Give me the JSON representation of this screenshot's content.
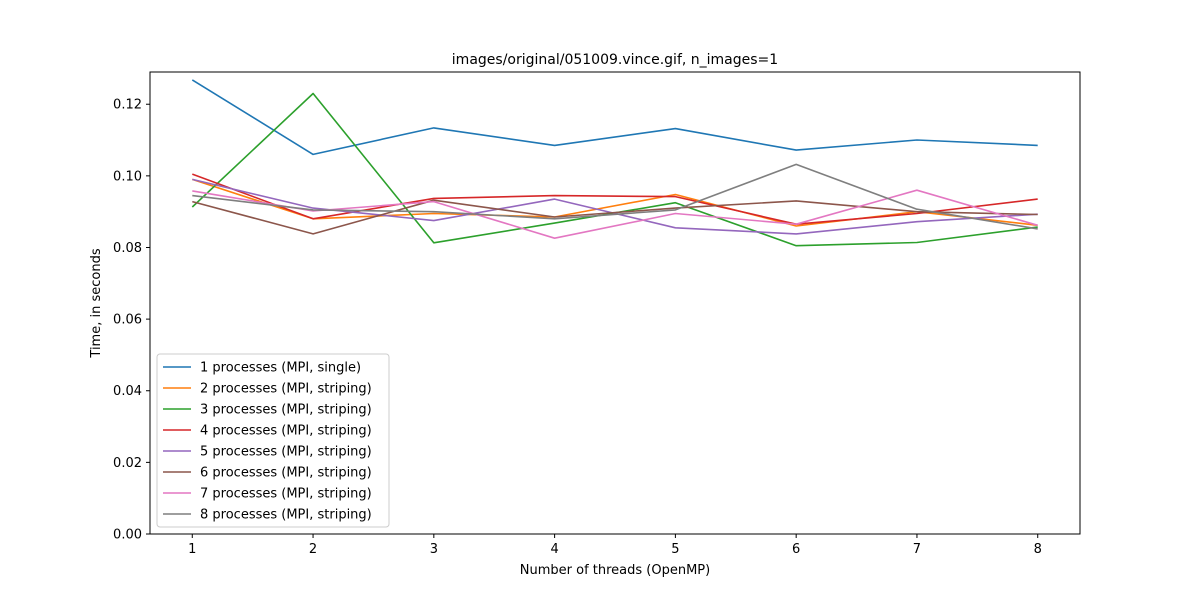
{
  "chart_data": {
    "type": "line",
    "title": "images/original/051009.vince.gif, n_images=1",
    "xlabel": "Number of threads (OpenMP)",
    "ylabel": "Time, in seconds",
    "x": [
      1,
      2,
      3,
      4,
      5,
      6,
      7,
      8
    ],
    "xlim": [
      0.65,
      8.35
    ],
    "ylim": [
      0,
      0.129
    ],
    "x_ticks": [
      1,
      2,
      3,
      4,
      5,
      6,
      7,
      8
    ],
    "x_tick_labels": [
      "1",
      "2",
      "3",
      "4",
      "5",
      "6",
      "7",
      "8"
    ],
    "y_ticks": [
      0,
      0.02,
      0.04,
      0.06,
      0.08,
      0.1,
      0.12
    ],
    "y_tick_labels": [
      "0.00",
      "0.02",
      "0.04",
      "0.06",
      "0.08",
      "0.10",
      "0.12"
    ],
    "grid": false,
    "legend_position": "lower-left",
    "series": [
      {
        "name": "1 processes (MPI, single)",
        "color": "#1f77b4",
        "values": [
          0.1268,
          0.106,
          0.1134,
          0.1085,
          0.1132,
          0.1072,
          0.11,
          0.1085
        ]
      },
      {
        "name": "2 processes (MPI, striping)",
        "color": "#ff7f0e",
        "values": [
          0.099,
          0.088,
          0.0895,
          0.0885,
          0.0948,
          0.086,
          0.09,
          0.0862
        ]
      },
      {
        "name": "3 processes (MPI, striping)",
        "color": "#2ca02c",
        "values": [
          0.0913,
          0.123,
          0.0813,
          0.0868,
          0.0925,
          0.0805,
          0.0814,
          0.0857
        ]
      },
      {
        "name": "4 processes (MPI, striping)",
        "color": "#d62728",
        "values": [
          0.1005,
          0.088,
          0.0937,
          0.0945,
          0.0942,
          0.0865,
          0.0895,
          0.0935
        ]
      },
      {
        "name": "5 processes (MPI, striping)",
        "color": "#9467bd",
        "values": [
          0.099,
          0.091,
          0.0875,
          0.0935,
          0.0855,
          0.0838,
          0.0872,
          0.0893
        ]
      },
      {
        "name": "6 processes (MPI, striping)",
        "color": "#8c564b",
        "values": [
          0.0928,
          0.0838,
          0.0932,
          0.0885,
          0.091,
          0.093,
          0.09,
          0.0892
        ]
      },
      {
        "name": "7 processes (MPI, striping)",
        "color": "#e377c2",
        "values": [
          0.0958,
          0.0902,
          0.0928,
          0.0826,
          0.0895,
          0.0865,
          0.096,
          0.0862
        ]
      },
      {
        "name": "8 processes (MPI, striping)",
        "color": "#7f7f7f",
        "values": [
          0.0945,
          0.0905,
          0.09,
          0.088,
          0.0905,
          0.1032,
          0.0907,
          0.0852
        ]
      }
    ]
  }
}
